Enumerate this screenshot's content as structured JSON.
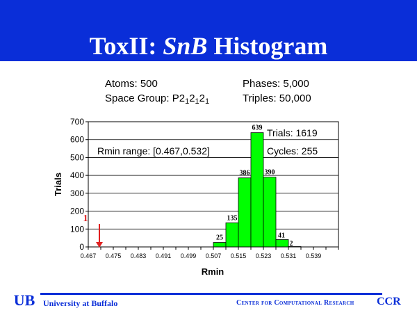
{
  "slide": {
    "title_plain": "ToxII: ",
    "title_italic": "SnB",
    "title_rest": " Histogram",
    "colors": {
      "banner": "#0a2ed8",
      "title": "#ffffff",
      "bar": "#00ff00",
      "arrow": "#e02020",
      "footer": "#0a2ed8"
    }
  },
  "info": {
    "atoms": "Atoms: 500",
    "space_group_prefix": "Space Group: P2",
    "space_group_sub": "1",
    "space_group_mid": "2",
    "phases": "Phases:  5,000",
    "triples": "Triples:  50,000"
  },
  "chart_data": {
    "type": "bar",
    "title": "",
    "xlabel": "Rmin",
    "ylabel": "Trials",
    "ylim": [
      0,
      700
    ],
    "yticks": [
      "0",
      "100",
      "200",
      "300",
      "400",
      "500",
      "600",
      "700"
    ],
    "xticks": [
      "0.467",
      "0.475",
      "0.483",
      "0.491",
      "0.499",
      "0.507",
      "0.515",
      "0.523",
      "0.531",
      "0.539"
    ],
    "xlim": [
      0.467,
      0.547
    ],
    "bin_width": 0.004,
    "bars": [
      {
        "x": 0.467,
        "value": 1,
        "label": "1"
      },
      {
        "x": 0.507,
        "value": 25,
        "label": "25"
      },
      {
        "x": 0.511,
        "value": 135,
        "label": "135"
      },
      {
        "x": 0.515,
        "value": 386,
        "label": "386"
      },
      {
        "x": 0.519,
        "value": 639,
        "label": "639"
      },
      {
        "x": 0.523,
        "value": 390,
        "label": "390"
      },
      {
        "x": 0.527,
        "value": 41,
        "label": "41"
      },
      {
        "x": 0.531,
        "value": 2,
        "label": "2"
      }
    ],
    "grid": true,
    "annotations": {
      "rmin_range": "Rmin range: [0.467,0.532]",
      "trials": "Trials: 1619",
      "cycles": "Cycles: 255"
    }
  },
  "footer": {
    "university": "University at Buffalo",
    "center": "Center for Computational Research",
    "ccr": "CCR",
    "logo_text": "UB"
  }
}
